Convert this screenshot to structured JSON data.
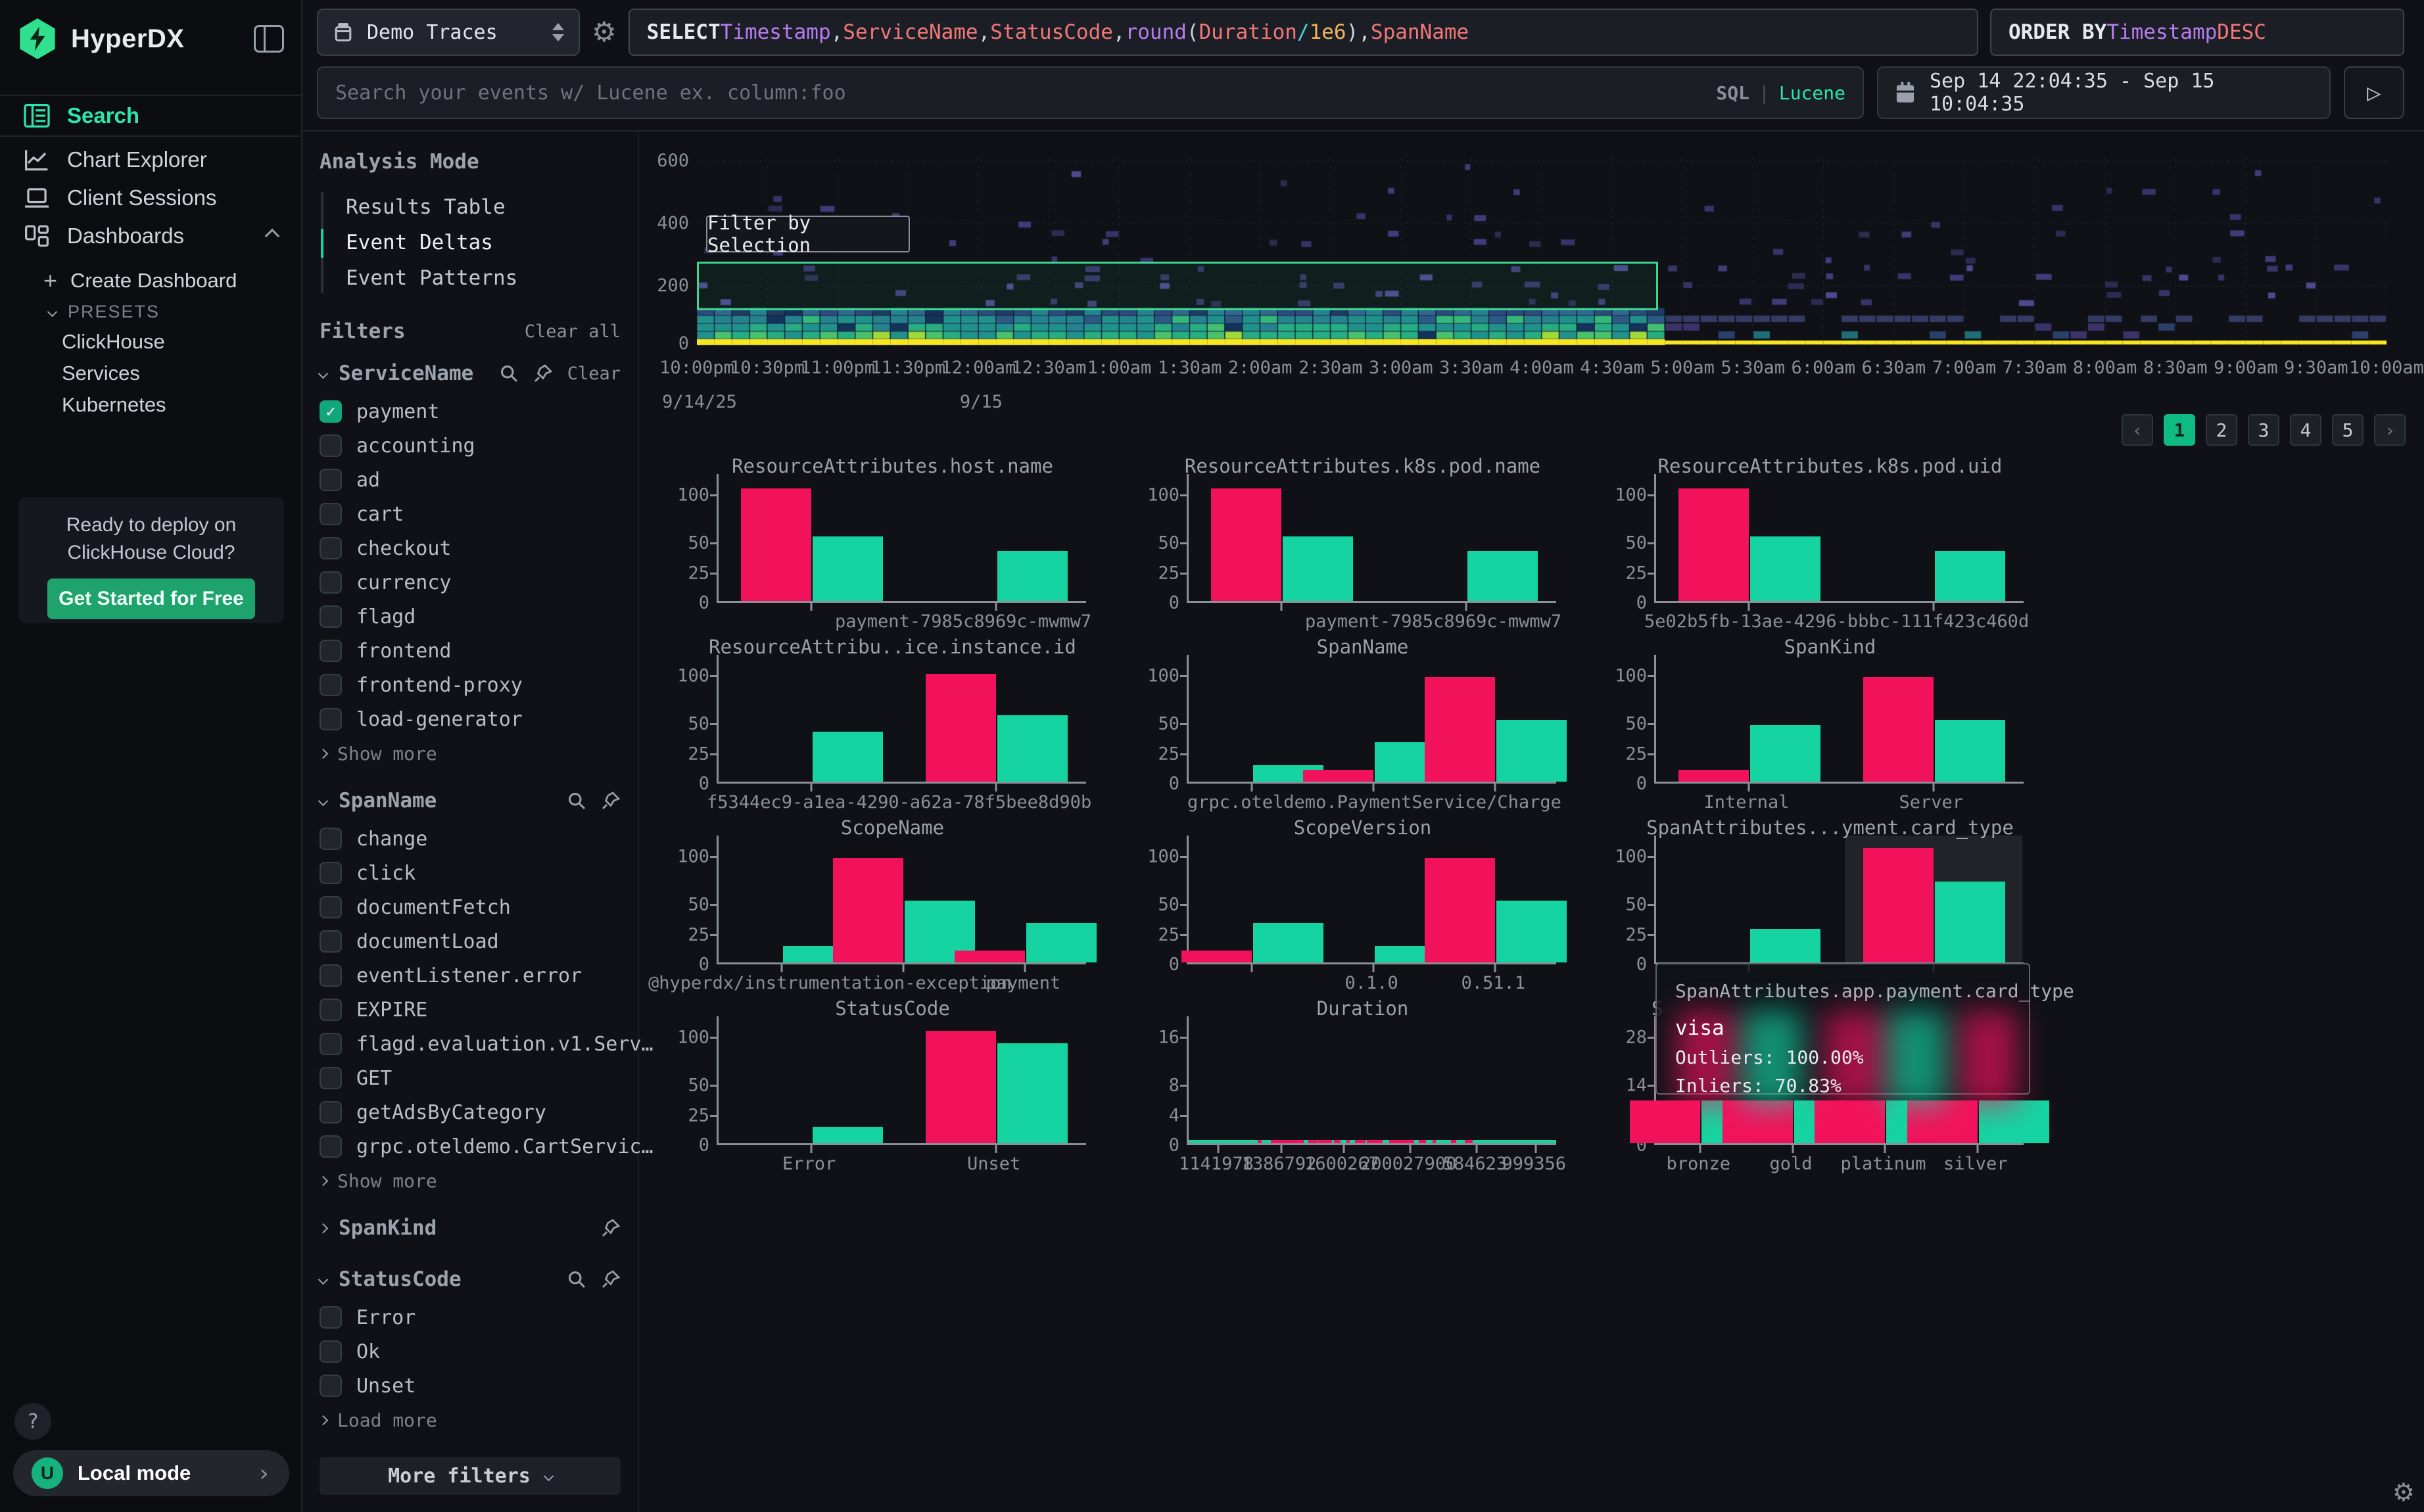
{
  "app": {
    "brand": "HyperDX"
  },
  "sidebar": {
    "nav": [
      {
        "label": "Search"
      },
      {
        "label": "Chart Explorer"
      },
      {
        "label": "Client Sessions"
      },
      {
        "label": "Dashboards"
      }
    ],
    "dashboards_sub": {
      "create": "Create Dashboard",
      "presets_label": "PRESETS",
      "presets": [
        "ClickHouse",
        "Services",
        "Kubernetes"
      ]
    },
    "promo": {
      "line1": "Ready to deploy on",
      "line2": "ClickHouse Cloud?",
      "cta": "Get Started for Free"
    },
    "footer": {
      "help": "?",
      "avatar": "U",
      "label": "Local mode"
    }
  },
  "topbar": {
    "source": {
      "label": "Demo Traces"
    },
    "sql_tokens": [
      {
        "t": "SELECT ",
        "c": "kw"
      },
      {
        "t": "Timestamp",
        "c": "type"
      },
      {
        "t": ", ",
        "c": "pln"
      },
      {
        "t": "ServiceName",
        "c": "col"
      },
      {
        "t": ", ",
        "c": "pln"
      },
      {
        "t": "StatusCode",
        "c": "col"
      },
      {
        "t": ", ",
        "c": "pln"
      },
      {
        "t": "round",
        "c": "fn"
      },
      {
        "t": "(",
        "c": "pln"
      },
      {
        "t": "Duration",
        "c": "col"
      },
      {
        "t": " ",
        "c": "pln"
      },
      {
        "t": "/",
        "c": "op"
      },
      {
        "t": " ",
        "c": "pln"
      },
      {
        "t": "1e6",
        "c": "num"
      },
      {
        "t": "), ",
        "c": "pln"
      },
      {
        "t": "SpanName",
        "c": "col"
      }
    ],
    "order_tokens": [
      {
        "t": "ORDER BY ",
        "c": "kw"
      },
      {
        "t": "Timestamp ",
        "c": "type"
      },
      {
        "t": "DESC",
        "c": "col"
      }
    ],
    "search": {
      "placeholder": "Search your events w/ Lucene ex. column:foo",
      "sql_label": "SQL",
      "divider": "|",
      "lucene_label": "Lucene"
    },
    "date_range": "Sep 14 22:04:35 - Sep 15 10:04:35",
    "run_glyph": "▷"
  },
  "left_panel": {
    "analysis_mode": {
      "title": "Analysis Mode",
      "items": [
        "Results Table",
        "Event Deltas",
        "Event Patterns"
      ],
      "active_index": 1
    },
    "filters": {
      "title": "Filters",
      "clear_all": "Clear all",
      "groups": [
        {
          "name": "ServiceName",
          "expanded": true,
          "has_search": true,
          "has_pin": true,
          "clear_label": "Clear",
          "options": [
            {
              "label": "payment",
              "checked": true
            },
            {
              "label": "accounting"
            },
            {
              "label": "ad"
            },
            {
              "label": "cart"
            },
            {
              "label": "checkout"
            },
            {
              "label": "currency"
            },
            {
              "label": "flagd"
            },
            {
              "label": "frontend"
            },
            {
              "label": "frontend-proxy"
            },
            {
              "label": "load-generator"
            }
          ],
          "more_label": "Show more"
        },
        {
          "name": "SpanName",
          "expanded": true,
          "has_search": true,
          "has_pin": true,
          "options": [
            {
              "label": "change"
            },
            {
              "label": "click"
            },
            {
              "label": "documentFetch"
            },
            {
              "label": "documentLoad"
            },
            {
              "label": "eventListener.error"
            },
            {
              "label": "EXPIRE"
            },
            {
              "label": "flagd.evaluation.v1.Serv…"
            },
            {
              "label": "GET"
            },
            {
              "label": "getAdsByCategory"
            },
            {
              "label": "grpc.oteldemo.CartServic…"
            }
          ],
          "more_label": "Show more"
        },
        {
          "name": "SpanKind",
          "expanded": false,
          "has_pin": true
        },
        {
          "name": "StatusCode",
          "expanded": true,
          "has_search": true,
          "has_pin": true,
          "options": [
            {
              "label": "Error"
            },
            {
              "label": "Ok"
            },
            {
              "label": "Unset"
            }
          ],
          "more_label": "Load more"
        }
      ],
      "more_filters": "More filters"
    }
  },
  "chart_data": [
    {
      "type": "heatmap",
      "name": "event-deltas-heatmap",
      "ylabel_ticks": [
        600,
        400,
        200,
        0
      ],
      "x_ticks": [
        "10:00pm",
        "10:30pm",
        "11:00pm",
        "11:30pm",
        "12:00am",
        "12:30am",
        "1:00am",
        "1:30am",
        "2:00am",
        "2:30am",
        "3:00am",
        "3:30am",
        "4:00am",
        "4:30am",
        "5:00am",
        "5:30am",
        "6:00am",
        "6:30am",
        "7:00am",
        "7:30am",
        "8:00am",
        "8:30am",
        "9:00am",
        "9:30am",
        "10:00am"
      ],
      "date_labels": [
        {
          "text": "9/14/25",
          "tick": 0
        },
        {
          "text": "9/15",
          "tick": 4
        }
      ],
      "filter_button": "Filter by Selection",
      "selection": {
        "y_from": 110,
        "y_to": 270,
        "x_from_frac": 0.0,
        "x_to_frac": 0.569
      },
      "dense_band_end_frac": 0.583,
      "palette": [
        "#46327e",
        "#365c8d",
        "#277f8e",
        "#21918c",
        "#27ad81",
        "#5ec962",
        "#f8e621"
      ]
    },
    {
      "type": "grouped_bar",
      "title": "ResourceAttributes.host.name",
      "yticks": [
        0,
        25,
        50,
        100
      ],
      "series_colors": {
        "outliers": "#f2125c",
        "inliers": "#15d4a1"
      },
      "groups": [
        {
          "x": 25,
          "outliers": 105,
          "inliers": 55
        },
        {
          "x": 75,
          "inliers": 42,
          "label": "payment-7985c8969c-mwmw7"
        }
      ]
    },
    {
      "type": "grouped_bar",
      "title": "ResourceAttributes.k8s.pod.name",
      "yticks": [
        0,
        25,
        50,
        100
      ],
      "groups": [
        {
          "x": 25,
          "outliers": 105,
          "inliers": 55
        },
        {
          "x": 75,
          "inliers": 42,
          "label": "payment-7985c8969c-mwmw7"
        }
      ]
    },
    {
      "type": "grouped_bar",
      "title": "ResourceAttributes.k8s.pod.uid",
      "yticks": [
        0,
        25,
        50,
        100
      ],
      "groups": [
        {
          "x": 25,
          "outliers": 105,
          "inliers": 55
        },
        {
          "x": 75,
          "inliers": 42,
          "label": "5e02b5fb-13ae-4296-bbbc-111f423c460d"
        }
      ]
    },
    {
      "type": "grouped_bar",
      "title": "ResourceAttribu..ice.instance.id",
      "yticks": [
        0,
        25,
        50,
        100
      ],
      "groups": [
        {
          "x": 25,
          "inliers": 42
        },
        {
          "x": 75,
          "outliers": 100,
          "inliers": 57,
          "label": "f5344ec9-a1ea-4290-a62a-78f5bee8d90b"
        }
      ]
    },
    {
      "type": "grouped_bar",
      "title": "SpanName",
      "yticks": [
        0,
        25,
        50,
        100
      ],
      "groups": [
        {
          "x": 17,
          "inliers": 14
        },
        {
          "x": 50,
          "outliers": 10,
          "inliers": 33
        },
        {
          "x": 83,
          "outliers": 97,
          "inliers": 52,
          "label": "grpc.oteldemo.PaymentService/Charge"
        }
      ]
    },
    {
      "type": "grouped_bar",
      "title": "SpanKind",
      "yticks": [
        0,
        25,
        50,
        100
      ],
      "groups": [
        {
          "x": 25,
          "outliers": 10,
          "inliers": 47,
          "label": "Internal"
        },
        {
          "x": 75,
          "outliers": 97,
          "inliers": 52,
          "label": "Server"
        }
      ]
    },
    {
      "type": "grouped_bar",
      "title": "ScopeName",
      "yticks": [
        0,
        25,
        50,
        100
      ],
      "groups": [
        {
          "x": 17,
          "inliers": 14,
          "label": "@hyperdx/instrumentation-exception"
        },
        {
          "x": 50,
          "outliers": 97,
          "inliers": 52
        },
        {
          "x": 83,
          "outliers": 10,
          "inliers": 33,
          "label": "payment"
        }
      ]
    },
    {
      "type": "grouped_bar",
      "title": "ScopeVersion",
      "yticks": [
        0,
        25,
        50,
        100
      ],
      "groups": [
        {
          "x": 17,
          "outliers": 10,
          "inliers": 33
        },
        {
          "x": 50,
          "inliers": 14,
          "label": "0.1.0"
        },
        {
          "x": 83,
          "outliers": 97,
          "inliers": 52,
          "label": "0.51.1"
        }
      ]
    },
    {
      "type": "grouped_bar",
      "title": "SpanAttributes...yment.card_type",
      "yticks": [
        0,
        25,
        50,
        100
      ],
      "groups": [
        {
          "x": 25,
          "inliers": 28
        },
        {
          "x": 75,
          "outliers": 107,
          "inliers": 72,
          "hover": true
        }
      ]
    },
    {
      "type": "grouped_bar",
      "title": "StatusCode",
      "yticks": [
        0,
        25,
        50,
        100
      ],
      "groups": [
        {
          "x": 25,
          "inliers": 14,
          "label": "Error"
        },
        {
          "x": 75,
          "outliers": 105,
          "inliers": 92,
          "label": "Unset"
        }
      ]
    },
    {
      "type": "flatline",
      "title": "Duration",
      "yticks": [
        0,
        4,
        8,
        16
      ],
      "xlabels": [
        {
          "x": 8,
          "label": "1141978"
        },
        {
          "x": 25,
          "label": "1386792"
        },
        {
          "x": 42,
          "label": "1600267"
        },
        {
          "x": 60,
          "label": "200027900"
        },
        {
          "x": 78,
          "label": "584623"
        },
        {
          "x": 94,
          "label": "999356"
        }
      ]
    },
    {
      "type": "grouped_bar",
      "title_fragment": "S",
      "yticks": [
        0,
        7,
        14,
        28
      ],
      "groups": [
        {
          "x": 12,
          "outliers": 10,
          "inliers": 10,
          "label": "bronze"
        },
        {
          "x": 37,
          "outliers": 10,
          "inliers": 10,
          "label": "gold"
        },
        {
          "x": 62,
          "outliers": 10,
          "inliers": 10,
          "label": "platinum"
        },
        {
          "x": 87,
          "outliers": 10,
          "inliers": 10,
          "label": "silver"
        }
      ]
    }
  ],
  "pagination": {
    "prev": "‹",
    "pages": [
      "1",
      "2",
      "3",
      "4",
      "5"
    ],
    "next": "›",
    "active": "1"
  },
  "tooltip": {
    "title": "SpanAttributes.app.payment.card_type",
    "value": "visa",
    "outliers_line": "Outliers: 100.00%",
    "inliers_line": "Inliers: 70.83%"
  }
}
